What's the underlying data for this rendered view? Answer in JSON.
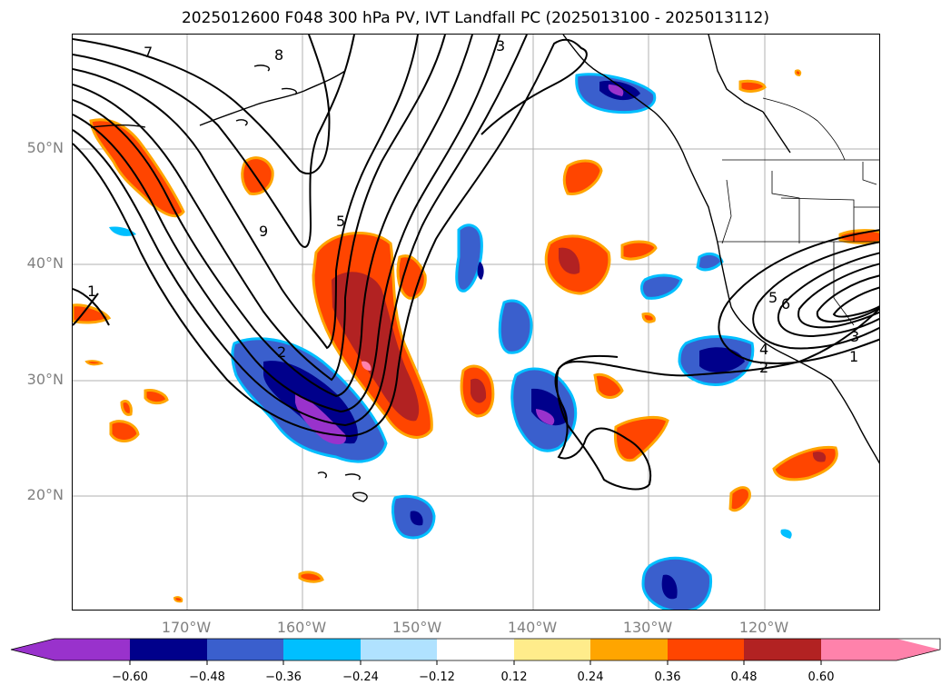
{
  "title": "2025012600 F048 300 hPa PV, IVT Landfall PC (2025013100 - 2025013112)",
  "map": {
    "latitude_labels": [
      "50°N",
      "40°N",
      "30°N",
      "20°N"
    ],
    "longitude_labels": [
      "170°W",
      "160°W",
      "150°W",
      "140°W",
      "130°W",
      "120°W"
    ],
    "contour_labels": [
      "7",
      "8",
      "3",
      "9",
      "5",
      "1",
      "2",
      "5",
      "6",
      "4",
      "2",
      "3",
      "1"
    ],
    "colors": {
      "land_lines": "#000000",
      "grid": "#b0b0b0",
      "contours": "#000000"
    }
  },
  "colorbar": {
    "ticks": [
      "−0.60",
      "−0.48",
      "−0.36",
      "−0.24",
      "−0.12",
      "0.12",
      "0.24",
      "0.36",
      "0.48",
      "0.60"
    ],
    "colors": [
      "#9932cc",
      "#00008b",
      "#3a5fcd",
      "#00bfff",
      "#b0e2ff",
      "#ffffff",
      "#ffec8b",
      "#ffa500",
      "#ff4500",
      "#b22222",
      "#ff82ab"
    ]
  }
}
